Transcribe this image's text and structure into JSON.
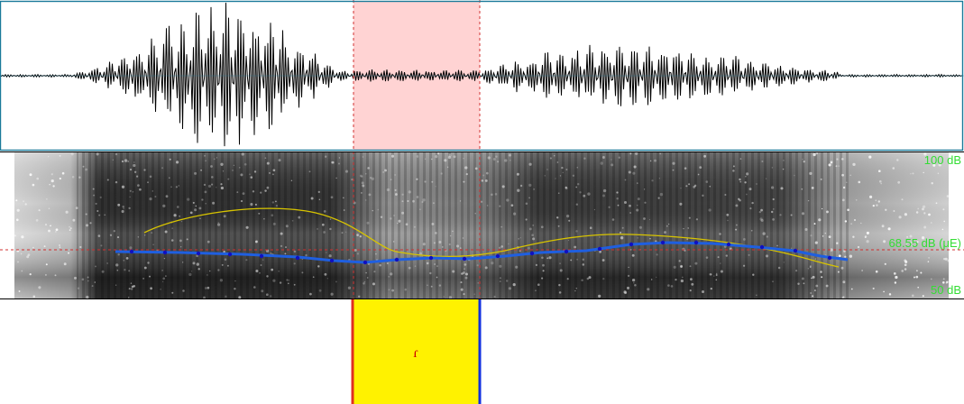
{
  "spectrogram": {
    "db_max_label": "100 dB",
    "db_cursor_label": "68.55 dB (μE)",
    "db_min_label": "50 dB",
    "db_range": [
      50,
      100
    ],
    "cursor_db": 68.55
  },
  "selection": {
    "fill_color": "#ffd3d3",
    "line_color": "#d03030"
  },
  "tier": {
    "interval_label": "ɾ",
    "interval_color": "#fff200",
    "left_boundary_color": "#e03020",
    "right_boundary_color": "#1030e0"
  },
  "colors": {
    "frame": "#1a7a9a",
    "pitch_line": "#1f5fe0",
    "pitch_points": "#1010c0",
    "intensity_line": "#d8c400",
    "db_labels": "#33dd33"
  }
}
